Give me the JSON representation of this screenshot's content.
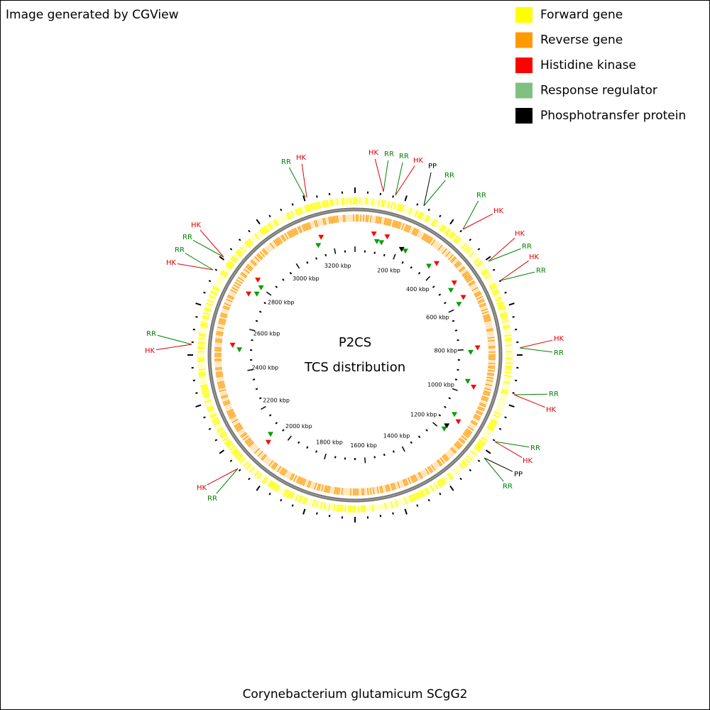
{
  "header": {
    "credit": "Image generated by CGView"
  },
  "legend": [
    {
      "label": "Forward gene",
      "color": "#ffff00"
    },
    {
      "label": "Reverse gene",
      "color": "#ff9900"
    },
    {
      "label": "Histidine kinase",
      "color": "#ff0000"
    },
    {
      "label": "Response regulator",
      "color": "#80c080"
    },
    {
      "label": "Phosphotransfer protein",
      "color": "#000000"
    }
  ],
  "map": {
    "title": "P2CS",
    "subtitle": "TCS distribution",
    "ruler_labels": [
      "200 kbp",
      "400 kbp",
      "600 kbp",
      "800 kbp",
      "1000 kbp",
      "1200 kbp",
      "1400 kbp",
      "1600 kbp",
      "1800 kbp",
      "2000 kbp",
      "2200 kbp",
      "2400 kbp",
      "2600 kbp",
      "2800 kbp",
      "3000 kbp",
      "3200 kbp"
    ],
    "features": [
      {
        "label": "RR",
        "color": "#008000"
      },
      {
        "label": "HK",
        "color": "#e00000"
      },
      {
        "label": "HK",
        "color": "#e00000"
      },
      {
        "label": "RR",
        "color": "#008000"
      },
      {
        "label": "RR",
        "color": "#008000"
      },
      {
        "label": "HK",
        "color": "#e00000"
      },
      {
        "label": "PP",
        "color": "#000000"
      },
      {
        "label": "RR",
        "color": "#008000"
      },
      {
        "label": "RR",
        "color": "#008000"
      },
      {
        "label": "HK",
        "color": "#e00000"
      },
      {
        "label": "HK",
        "color": "#e00000"
      },
      {
        "label": "RR",
        "color": "#008000"
      },
      {
        "label": "HK",
        "color": "#e00000"
      },
      {
        "label": "RR",
        "color": "#008000"
      },
      {
        "label": "HK",
        "color": "#e00000"
      },
      {
        "label": "RR",
        "color": "#008000"
      },
      {
        "label": "RR",
        "color": "#008000"
      },
      {
        "label": "HK",
        "color": "#e00000"
      },
      {
        "label": "RR",
        "color": "#008000"
      },
      {
        "label": "HK",
        "color": "#e00000"
      },
      {
        "label": "PP",
        "color": "#000000"
      },
      {
        "label": "RR",
        "color": "#008000"
      },
      {
        "label": "HK",
        "color": "#e00000"
      },
      {
        "label": "RR",
        "color": "#008000"
      },
      {
        "label": "RR",
        "color": "#008000"
      },
      {
        "label": "HK",
        "color": "#e00000"
      },
      {
        "label": "HK",
        "color": "#e00000"
      },
      {
        "label": "RR",
        "color": "#008000"
      },
      {
        "label": "RR",
        "color": "#008000"
      },
      {
        "label": "HK",
        "color": "#e00000"
      }
    ]
  },
  "footer": {
    "organism": "Corynebacterium glutamicum SCgG2"
  }
}
